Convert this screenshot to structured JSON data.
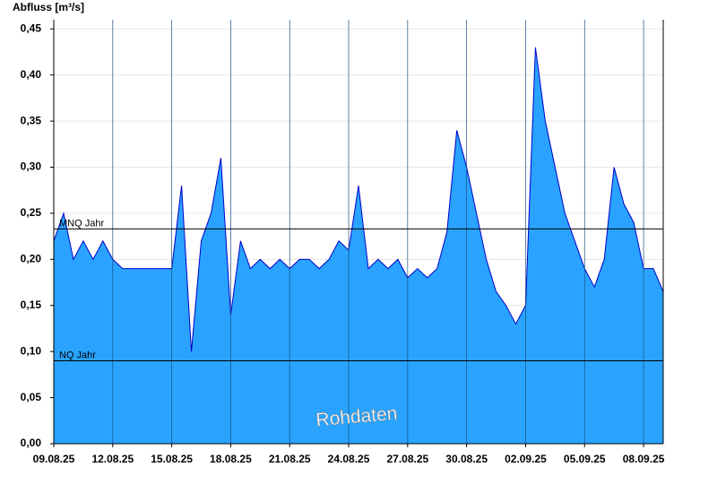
{
  "chart_data": {
    "type": "area",
    "title": "Abfluss [m³/s]",
    "watermark": "Rohdaten",
    "x": [
      0,
      0.5,
      1,
      1.5,
      2,
      2.5,
      3,
      3.5,
      4,
      4.5,
      5,
      5.5,
      6,
      6.5,
      7,
      7.5,
      8,
      8.5,
      9,
      9.5,
      10,
      10.5,
      11,
      11.5,
      12,
      12.5,
      13,
      13.5,
      14,
      14.5,
      15,
      15.5,
      16,
      16.5,
      17,
      17.5,
      18,
      18.5,
      19,
      19.5,
      20,
      20.5,
      21,
      21.5,
      22,
      22.5,
      23,
      23.5,
      24,
      24.5,
      25,
      25.5,
      26,
      26.5,
      27,
      27.5,
      28,
      28.5,
      29,
      29.5,
      30,
      30.5,
      31
    ],
    "series": [
      {
        "color": "#29a3ff",
        "values": [
          0.22,
          0.25,
          0.2,
          0.22,
          0.2,
          0.22,
          0.2,
          0.19,
          0.19,
          0.19,
          0.19,
          0.19,
          0.19,
          0.28,
          0.1,
          0.22,
          0.25,
          0.31,
          0.14,
          0.22,
          0.19,
          0.2,
          0.19,
          0.2,
          0.19,
          0.2,
          0.2,
          0.19,
          0.2,
          0.22,
          0.21,
          0.28,
          0.19,
          0.2,
          0.19,
          0.2,
          0.18,
          0.19,
          0.18,
          0.19,
          0.23,
          0.34,
          0.3,
          0.25,
          0.2,
          0.165,
          0.15,
          0.13,
          0.15,
          0.43,
          0.35,
          0.3,
          0.25,
          0.22,
          0.19,
          0.17,
          0.2,
          0.3,
          0.26,
          0.24,
          0.19,
          0.19,
          0.165
        ]
      }
    ],
    "reference_lines": [
      {
        "label": "MNQ Jahr",
        "value": 0.233
      },
      {
        "label": "NQ Jahr",
        "value": 0.09
      }
    ],
    "xlim": [
      0,
      31
    ],
    "xticks": [
      {
        "value": 0,
        "label": "09.08.25"
      },
      {
        "value": 3,
        "label": "12.08.25"
      },
      {
        "value": 6,
        "label": "15.08.25"
      },
      {
        "value": 9,
        "label": "18.08.25"
      },
      {
        "value": 12,
        "label": "21.08.25"
      },
      {
        "value": 15,
        "label": "24.08.25"
      },
      {
        "value": 18,
        "label": "27.08.25"
      },
      {
        "value": 21,
        "label": "30.08.25"
      },
      {
        "value": 24,
        "label": "02.09.25"
      },
      {
        "value": 27,
        "label": "05.09.25"
      },
      {
        "value": 30,
        "label": "08.09.25"
      }
    ],
    "ylim": [
      0,
      0.46
    ],
    "yticks": [
      {
        "value": 0,
        "label": "0,00"
      },
      {
        "value": 0.05,
        "label": "0,05"
      },
      {
        "value": 0.1,
        "label": "0,10"
      },
      {
        "value": 0.15,
        "label": "0,15"
      },
      {
        "value": 0.2,
        "label": "0,20"
      },
      {
        "value": 0.25,
        "label": "0,25"
      },
      {
        "value": 0.3,
        "label": "0,30"
      },
      {
        "value": 0.35,
        "label": "0,35"
      },
      {
        "value": 0.4,
        "label": "0,40"
      },
      {
        "value": 0.45,
        "label": "0,45"
      }
    ],
    "grid": true
  }
}
